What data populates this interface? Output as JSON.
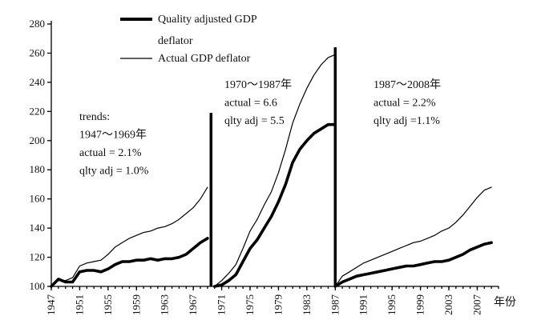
{
  "chart_data": {
    "type": "line",
    "title": "",
    "xlabel": "年份",
    "ylabel": "",
    "ylim": [
      100,
      280
    ],
    "xlim": [
      1947,
      2010
    ],
    "grid": false,
    "y_ticks": [
      100,
      120,
      140,
      160,
      180,
      200,
      220,
      240,
      260,
      280
    ],
    "x_ticks": [
      1947,
      1951,
      1955,
      1959,
      1963,
      1967,
      1971,
      1975,
      1979,
      1983,
      1987,
      1991,
      1995,
      1999,
      2003,
      2007
    ],
    "legend_position": "top-center",
    "series": [
      {
        "name": "Quality adjusted GDP deflator",
        "legend_lines": [
          "Quality adjusted GDP",
          "deflator"
        ],
        "style": "thick",
        "segments": [
          {
            "x": [
              1947,
              1948,
              1949,
              1950,
              1951,
              1952,
              1953,
              1954,
              1955,
              1956,
              1957,
              1958,
              1959,
              1960,
              1961,
              1962,
              1963,
              1964,
              1965,
              1966,
              1967,
              1968,
              1969
            ],
            "y": [
              100,
              105,
              103,
              103,
              110,
              111,
              111,
              110,
              112,
              115,
              117,
              117,
              118,
              118,
              119,
              118,
              119,
              119,
              120,
              122,
              126,
              130,
              133
            ]
          },
          {
            "x": [
              1970,
              1971,
              1972,
              1973,
              1974,
              1975,
              1976,
              1977,
              1978,
              1979,
              1980,
              1981,
              1982,
              1983,
              1984,
              1985,
              1986,
              1987
            ],
            "y": [
              100,
              101,
              104,
              108,
              117,
              126,
              132,
              140,
              148,
              158,
              170,
              185,
              194,
              200,
              205,
              208,
              211,
              211
            ]
          },
          {
            "x": [
              1987,
              1988,
              1989,
              1990,
              1991,
              1992,
              1993,
              1994,
              1995,
              1996,
              1997,
              1998,
              1999,
              2000,
              2001,
              2002,
              2003,
              2004,
              2005,
              2006,
              2007,
              2008,
              2009
            ],
            "y": [
              100,
              103,
              105,
              107,
              108,
              109,
              110,
              111,
              112,
              113,
              114,
              114,
              115,
              116,
              117,
              117,
              118,
              120,
              122,
              125,
              127,
              129,
              130
            ]
          }
        ]
      },
      {
        "name": "Actual GDP deflator",
        "legend_lines": [
          "Actual GDP deflator"
        ],
        "style": "thin",
        "segments": [
          {
            "x": [
              1947,
              1948,
              1949,
              1950,
              1951,
              1952,
              1953,
              1954,
              1955,
              1956,
              1957,
              1958,
              1959,
              1960,
              1961,
              1962,
              1963,
              1964,
              1965,
              1966,
              1967,
              1968,
              1969
            ],
            "y": [
              100,
              104,
              104,
              106,
              114,
              116,
              117,
              118,
              122,
              127,
              130,
              133,
              135,
              137,
              138,
              140,
              141,
              143,
              146,
              150,
              154,
              160,
              168
            ]
          },
          {
            "x": [
              1970,
              1971,
              1972,
              1973,
              1974,
              1975,
              1976,
              1977,
              1978,
              1979,
              1980,
              1981,
              1982,
              1983,
              1984,
              1985,
              1986,
              1987
            ],
            "y": [
              100,
              104,
              109,
              115,
              126,
              138,
              146,
              156,
              165,
              178,
              194,
              212,
              225,
              236,
              245,
              252,
              257,
              259
            ]
          },
          {
            "x": [
              1987,
              1988,
              1989,
              1990,
              1991,
              1992,
              1993,
              1994,
              1995,
              1996,
              1997,
              1998,
              1999,
              2000,
              2001,
              2002,
              2003,
              2004,
              2005,
              2006,
              2007,
              2008,
              2009
            ],
            "y": [
              100,
              107,
              110,
              113,
              116,
              118,
              120,
              122,
              124,
              126,
              128,
              130,
              131,
              133,
              135,
              138,
              140,
              144,
              149,
              155,
              161,
              166,
              168
            ]
          }
        ]
      }
    ],
    "breaks": [
      1969.5,
      1987
    ],
    "annotations": [
      {
        "id": "period1",
        "lines": [
          "trends:",
          "1947～1969年",
          "actual = 2.1%",
          "qlty adj = 1.0%"
        ]
      },
      {
        "id": "period2",
        "lines": [
          "1970～1987年",
          "actual = 6.6",
          "qlty adj = 5.5"
        ]
      },
      {
        "id": "period3",
        "lines": [
          "1987～2008年",
          "actual = 2.2%",
          "qlty adj =1.1%"
        ]
      }
    ]
  }
}
